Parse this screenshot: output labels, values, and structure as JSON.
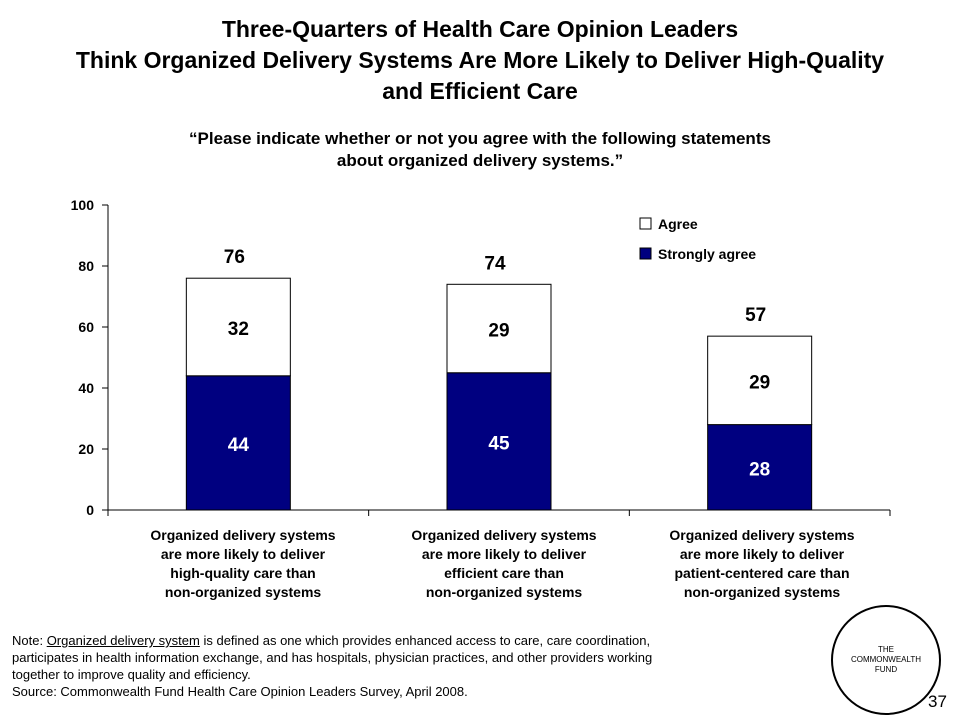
{
  "title_lines": [
    "Three-Quarters of Health Care Opinion Leaders",
    "Think Organized Delivery Systems Are More Likely to Deliver High-Quality",
    "and Efficient Care"
  ],
  "subtitle_lines": [
    "“Please indicate whether or not you agree with the following statements",
    "about organized delivery systems.”"
  ],
  "chart_data": {
    "type": "bar",
    "stacked": true,
    "ylim": [
      0,
      100
    ],
    "yticks": [
      0,
      20,
      40,
      60,
      80,
      100
    ],
    "categories": [
      [
        "Organized delivery systems",
        "are more likely to deliver",
        "high-quality care than",
        "non-organized systems"
      ],
      [
        "Organized delivery systems",
        "are more likely to deliver",
        "efficient care than",
        "non-organized systems"
      ],
      [
        "Organized delivery systems",
        "are more likely to deliver",
        "patient-centered care than",
        "non-organized systems"
      ]
    ],
    "series": [
      {
        "name": "Strongly agree",
        "values": [
          44,
          45,
          28
        ],
        "color": "#000080"
      },
      {
        "name": "Agree",
        "values": [
          32,
          29,
          29
        ],
        "color": "#ffffff"
      }
    ],
    "totals": [
      76,
      74,
      57
    ],
    "legend_position": "top-right",
    "grid": false
  },
  "note": {
    "prefix": "Note: ",
    "term": "Organized delivery system",
    "line1_rest": " is defined as one which provides enhanced access to care, care coordination,",
    "line2": "participates in health information exchange, and has hospitals, physician practices, and other providers working",
    "line3": "together to improve quality and efficiency.",
    "source": "Source: Commonwealth Fund Health Care Opinion Leaders Survey, April 2008."
  },
  "logo_lines": [
    "THE",
    "COMMONWEALTH",
    "FUND"
  ],
  "page_number": "37"
}
